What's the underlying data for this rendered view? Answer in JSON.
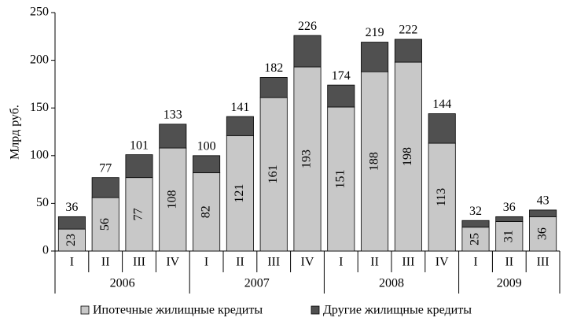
{
  "chart_data": {
    "type": "stacked-bar",
    "y_label": "Млрд руб.",
    "groups": [
      {
        "name": "2006",
        "categories": [
          "I",
          "II",
          "III",
          "IV"
        ]
      },
      {
        "name": "2007",
        "categories": [
          "I",
          "II",
          "III",
          "IV"
        ]
      },
      {
        "name": "2008",
        "categories": [
          "I",
          "II",
          "III",
          "IV"
        ]
      },
      {
        "name": "2009",
        "categories": [
          "I",
          "II",
          "III"
        ]
      }
    ],
    "series": [
      {
        "name": "Ипотечные жилищные кредиты",
        "color": "#c8c8c8",
        "values": [
          23,
          56,
          77,
          108,
          82,
          121,
          161,
          193,
          151,
          188,
          198,
          113,
          25,
          31,
          36
        ]
      },
      {
        "name": "Другие жилищные кредиты",
        "color": "#505050",
        "values": [
          13,
          21,
          24,
          25,
          18,
          20,
          21,
          33,
          23,
          31,
          24,
          31,
          7,
          5,
          7
        ]
      }
    ],
    "totals": [
      36,
      77,
      101,
      133,
      100,
      141,
      182,
      226,
      174,
      219,
      222,
      144,
      32,
      36,
      43
    ],
    "ylim": [
      0,
      250
    ],
    "yticks": [
      0,
      50,
      100,
      150,
      200,
      250
    ],
    "legend": "bottom"
  }
}
